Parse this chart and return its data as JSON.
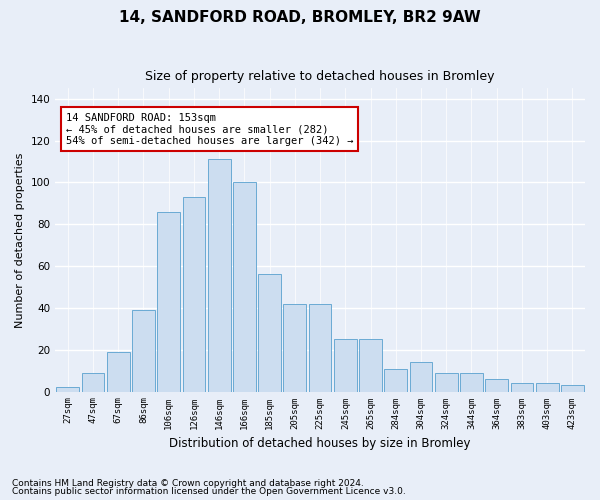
{
  "title1": "14, SANDFORD ROAD, BROMLEY, BR2 9AW",
  "title2": "Size of property relative to detached houses in Bromley",
  "xlabel": "Distribution of detached houses by size in Bromley",
  "ylabel": "Number of detached properties",
  "categories": [
    "27sqm",
    "47sqm",
    "67sqm",
    "86sqm",
    "106sqm",
    "126sqm",
    "146sqm",
    "166sqm",
    "185sqm",
    "205sqm",
    "225sqm",
    "245sqm",
    "265sqm",
    "284sqm",
    "304sqm",
    "324sqm",
    "344sqm",
    "364sqm",
    "383sqm",
    "403sqm",
    "423sqm"
  ],
  "values": [
    2,
    9,
    19,
    39,
    86,
    93,
    111,
    100,
    56,
    42,
    42,
    25,
    25,
    11,
    14,
    9,
    9,
    6,
    4,
    4,
    3
  ],
  "bar_color": "#ccddf0",
  "bar_edge_color": "#6aaad4",
  "annotation_text": "14 SANDFORD ROAD: 153sqm\n← 45% of detached houses are smaller (282)\n54% of semi-detached houses are larger (342) →",
  "annotation_box_color": "#ffffff",
  "annotation_border_color": "#cc0000",
  "ylim": [
    0,
    145
  ],
  "yticks": [
    0,
    20,
    40,
    60,
    80,
    100,
    120,
    140
  ],
  "footnote1": "Contains HM Land Registry data © Crown copyright and database right 2024.",
  "footnote2": "Contains public sector information licensed under the Open Government Licence v3.0.",
  "bg_color": "#e8eef8",
  "plot_bg_color": "#e8eef8",
  "grid_color": "#ffffff",
  "title1_fontsize": 11,
  "title2_fontsize": 9,
  "xlabel_fontsize": 8.5,
  "ylabel_fontsize": 8,
  "tick_fontsize": 6.5,
  "footnote_fontsize": 6.5,
  "annot_fontsize": 7.5
}
